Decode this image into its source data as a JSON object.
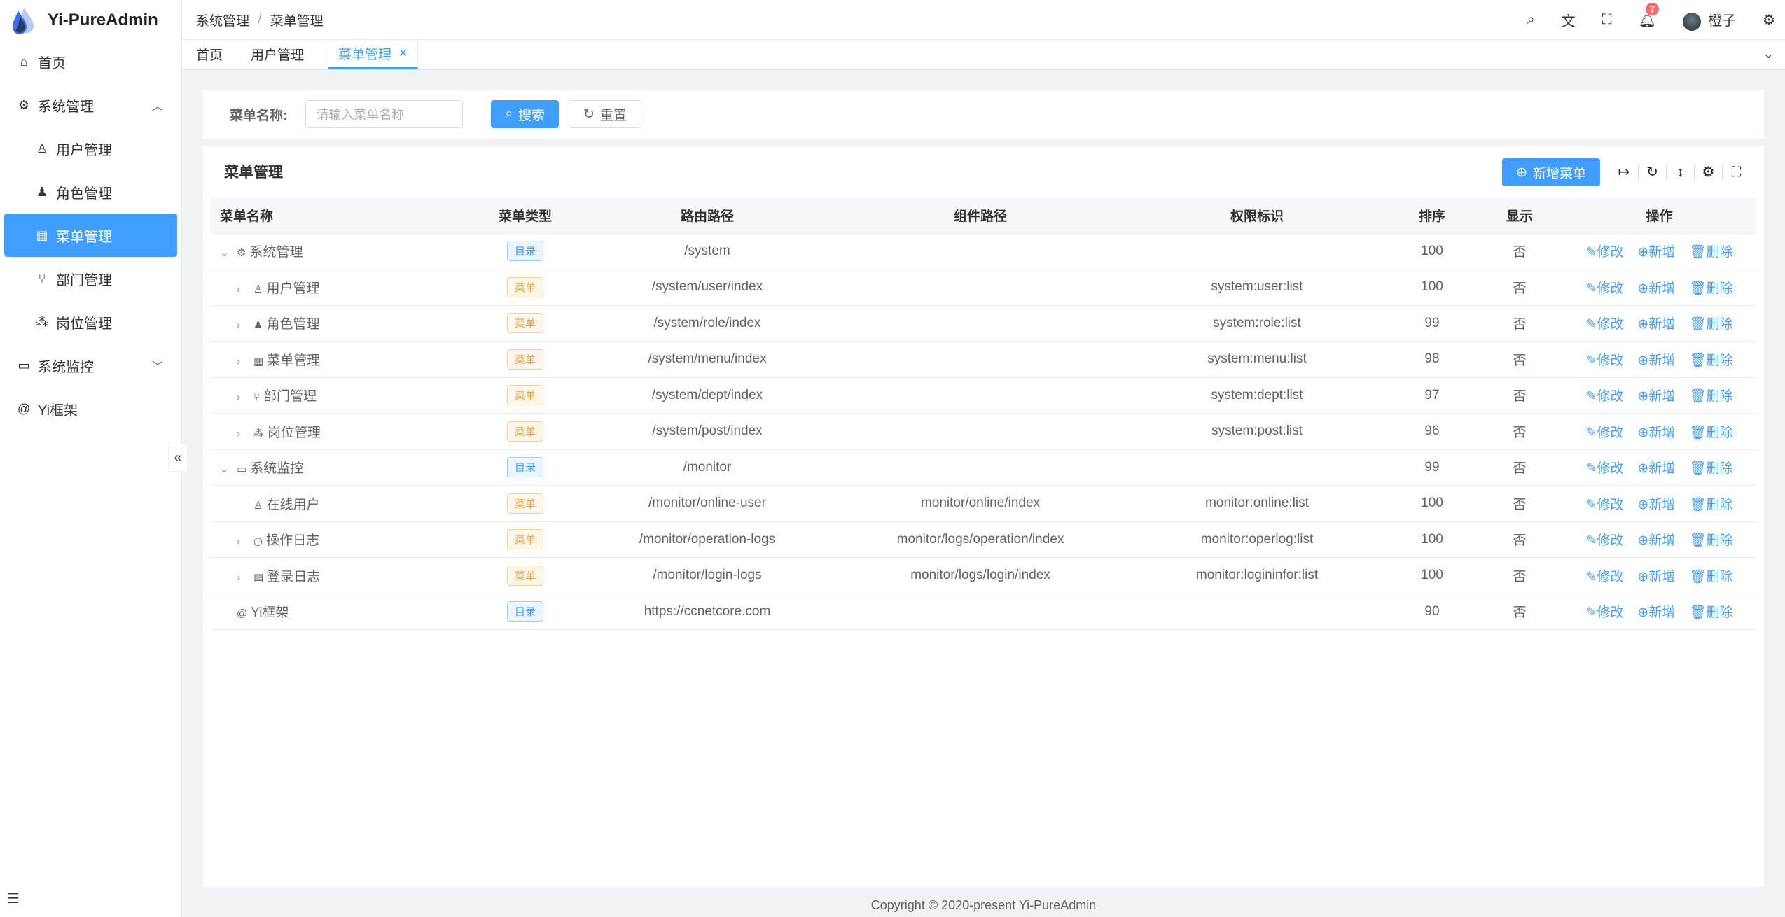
{
  "app": {
    "title": "Yi-PureAdmin"
  },
  "sidebar": {
    "items": [
      {
        "label": "首页",
        "icon": "home-icon"
      },
      {
        "label": "系统管理",
        "icon": "gear-icon",
        "expanded": true
      },
      {
        "label": "用户管理",
        "icon": "user-icon"
      },
      {
        "label": "角色管理",
        "icon": "role-icon"
      },
      {
        "label": "菜单管理",
        "icon": "grid-icon",
        "active": true
      },
      {
        "label": "部门管理",
        "icon": "branch-icon"
      },
      {
        "label": "岗位管理",
        "icon": "tree-icon"
      },
      {
        "label": "系统监控",
        "icon": "monitor-icon"
      },
      {
        "label": "Yi框架",
        "icon": "at-icon"
      }
    ]
  },
  "breadcrumb": [
    "系统管理",
    "菜单管理"
  ],
  "header": {
    "notification_count": "7",
    "username": "橙子"
  },
  "tabs": [
    {
      "label": "首页"
    },
    {
      "label": "用户管理"
    },
    {
      "label": "菜单管理",
      "active": true
    }
  ],
  "search": {
    "label": "菜单名称:",
    "placeholder": "请输入菜单名称",
    "search_label": "搜索",
    "reset_label": "重置"
  },
  "table": {
    "title": "菜单管理",
    "add_label": "新增菜单",
    "columns": [
      "菜单名称",
      "菜单类型",
      "路由路径",
      "组件路径",
      "权限标识",
      "排序",
      "显示",
      "操作"
    ],
    "actions": [
      "修改",
      "新增",
      "删除"
    ],
    "rows": [
      {
        "name": "系统管理",
        "expand": "down",
        "level": 0,
        "type": "目录",
        "route": "/system",
        "component": "",
        "perm": "",
        "sort": "100",
        "show": "否"
      },
      {
        "name": "用户管理",
        "expand": "right",
        "level": 1,
        "type": "菜单",
        "route": "/system/user/index",
        "component": "",
        "perm": "system:user:list",
        "sort": "100",
        "show": "否"
      },
      {
        "name": "角色管理",
        "expand": "right",
        "level": 1,
        "type": "菜单",
        "route": "/system/role/index",
        "component": "",
        "perm": "system:role:list",
        "sort": "99",
        "show": "否"
      },
      {
        "name": "菜单管理",
        "expand": "right",
        "level": 1,
        "type": "菜单",
        "route": "/system/menu/index",
        "component": "",
        "perm": "system:menu:list",
        "sort": "98",
        "show": "否"
      },
      {
        "name": "部门管理",
        "expand": "right",
        "level": 1,
        "type": "菜单",
        "route": "/system/dept/index",
        "component": "",
        "perm": "system:dept:list",
        "sort": "97",
        "show": "否"
      },
      {
        "name": "岗位管理",
        "expand": "right",
        "level": 1,
        "type": "菜单",
        "route": "/system/post/index",
        "component": "",
        "perm": "system:post:list",
        "sort": "96",
        "show": "否"
      },
      {
        "name": "系统监控",
        "expand": "down",
        "level": 0,
        "type": "目录",
        "route": "/monitor",
        "component": "",
        "perm": "",
        "sort": "99",
        "show": "否"
      },
      {
        "name": "在线用户",
        "expand": "",
        "level": 1,
        "type": "菜单",
        "route": "/monitor/online-user",
        "component": "monitor/online/index",
        "perm": "monitor:online:list",
        "sort": "100",
        "show": "否"
      },
      {
        "name": "操作日志",
        "expand": "right",
        "level": 1,
        "type": "菜单",
        "route": "/monitor/operation-logs",
        "component": "monitor/logs/operation/index",
        "perm": "monitor:operlog:list",
        "sort": "100",
        "show": "否"
      },
      {
        "name": "登录日志",
        "expand": "right",
        "level": 1,
        "type": "菜单",
        "route": "/monitor/login-logs",
        "component": "monitor/logs/login/index",
        "perm": "monitor:logininfor:list",
        "sort": "100",
        "show": "否"
      },
      {
        "name": "Yi框架",
        "expand": "",
        "level": 0,
        "type": "目录",
        "route": "https://ccnetcore.com",
        "component": "",
        "perm": "",
        "sort": "90",
        "show": "否"
      }
    ]
  },
  "footer": "Copyright © 2020-present Yi-PureAdmin",
  "colors": {
    "primary": "#409eff",
    "warning": "#e6a23c",
    "danger": "#f56c6c"
  }
}
